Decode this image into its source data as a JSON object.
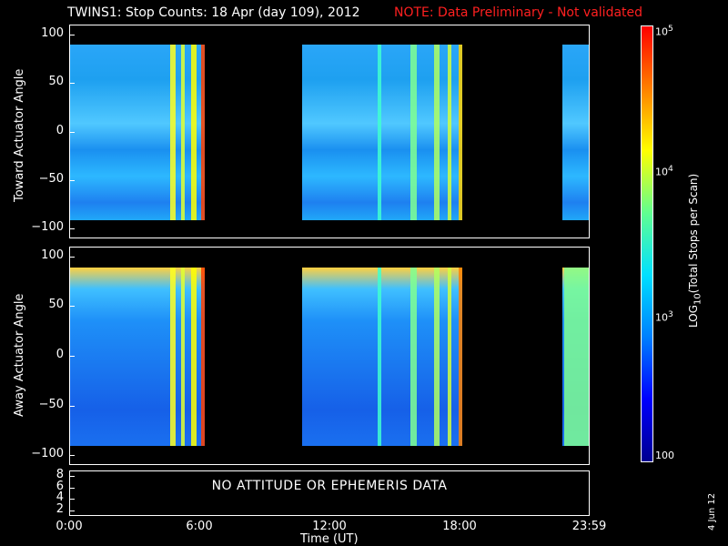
{
  "title": "TWINS1: Stop Counts: 18 Apr (day 109), 2012",
  "note": "NOTE: Data Preliminary - Not validated",
  "no_data_message": "NO ATTITUDE OR EPHEMERIS DATA",
  "datestamp": "4 Jun 12",
  "colorbar": {
    "label_html": "LOG<sub>10</sub>(Total Stops per Scan)",
    "ticks": [
      {
        "label": "10<sup>5</sup>",
        "value": 100000
      },
      {
        "label": "10<sup>4</sup>",
        "value": 10000
      },
      {
        "label": "10<sup>3</sup>",
        "value": 1000
      },
      {
        "label": "100",
        "value": 100
      }
    ],
    "range": [
      100,
      100000
    ],
    "scale": "log",
    "colors": [
      "#000090",
      "#0000ff",
      "#0080ff",
      "#00e0ff",
      "#60ff90",
      "#ffff00",
      "#ff8000",
      "#ff0000"
    ]
  },
  "x_axis": {
    "label": "Time (UT)",
    "ticks": [
      {
        "label": "0:00",
        "hours": 0
      },
      {
        "label": "6:00",
        "hours": 6
      },
      {
        "label": "12:00",
        "hours": 12
      },
      {
        "label": "18:00",
        "hours": 18
      },
      {
        "label": "23:59",
        "hours": 23.98
      }
    ],
    "range_hours": [
      0,
      24
    ]
  },
  "chart_data": [
    {
      "type": "heatmap",
      "ylabel": "Toward Actuator Angle",
      "ylim": [
        -110,
        110
      ],
      "yticks": [
        100,
        50,
        0,
        -50,
        -100
      ],
      "data_angle_range": [
        -90,
        90
      ],
      "data_intervals_hours": [
        [
          0,
          6.2
        ],
        [
          10.7,
          18.1
        ],
        [
          22.7,
          23.98
        ]
      ],
      "bright_strips_hours": [
        {
          "h": 4.6,
          "w": 0.25,
          "c": "#ffff20"
        },
        {
          "h": 5.1,
          "w": 0.2,
          "c": "#e0ff30"
        },
        {
          "h": 5.6,
          "w": 0.25,
          "c": "#ffff00"
        },
        {
          "h": 6.05,
          "w": 0.15,
          "c": "#ff4000"
        },
        {
          "h": 14.2,
          "w": 0.15,
          "c": "#40ffd0"
        },
        {
          "h": 15.7,
          "w": 0.3,
          "c": "#80ff90"
        },
        {
          "h": 16.8,
          "w": 0.25,
          "c": "#b0ff60"
        },
        {
          "h": 17.4,
          "w": 0.2,
          "c": "#d0ff40"
        },
        {
          "h": 17.9,
          "w": 0.2,
          "c": "#ffd000"
        }
      ],
      "base_color": "#1e9cf8"
    },
    {
      "type": "heatmap",
      "ylabel": "Away Actuator Angle",
      "ylim": [
        -110,
        110
      ],
      "yticks": [
        100,
        50,
        0,
        -50,
        -100
      ],
      "data_angle_range": [
        -90,
        90
      ],
      "data_intervals_hours": [
        [
          0,
          6.2
        ],
        [
          10.7,
          18.1
        ],
        [
          22.7,
          23.98
        ]
      ],
      "bright_strips_hours": [
        {
          "h": 4.6,
          "w": 0.25,
          "c": "#ffff20"
        },
        {
          "h": 5.1,
          "w": 0.2,
          "c": "#e0ff30"
        },
        {
          "h": 5.6,
          "w": 0.25,
          "c": "#ffff00"
        },
        {
          "h": 6.05,
          "w": 0.15,
          "c": "#ff4000"
        },
        {
          "h": 14.2,
          "w": 0.15,
          "c": "#40ffd0"
        },
        {
          "h": 15.7,
          "w": 0.3,
          "c": "#80ff90"
        },
        {
          "h": 16.8,
          "w": 0.25,
          "c": "#b0ff60"
        },
        {
          "h": 17.4,
          "w": 0.2,
          "c": "#d0ff40"
        },
        {
          "h": 17.9,
          "w": 0.2,
          "c": "#ff8000"
        },
        {
          "h": 22.8,
          "w": 1.18,
          "c": "#80ff90"
        }
      ],
      "base_color": "#1050e8"
    },
    {
      "type": "table",
      "yticks": [
        8,
        6,
        4,
        2
      ],
      "ylim": [
        1,
        9
      ]
    }
  ]
}
